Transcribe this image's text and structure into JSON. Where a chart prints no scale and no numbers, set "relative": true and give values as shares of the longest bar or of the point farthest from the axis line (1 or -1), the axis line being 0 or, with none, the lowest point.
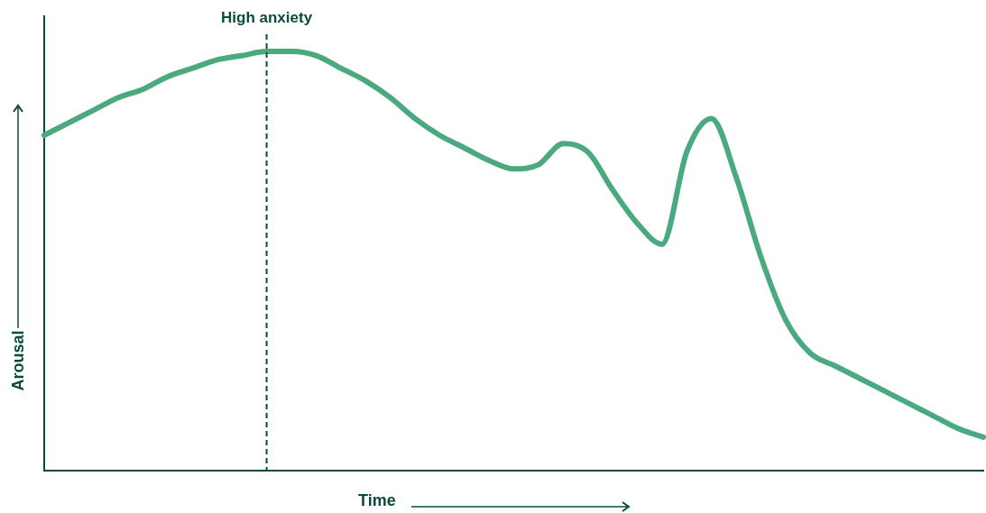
{
  "chart_data": {
    "type": "line",
    "relative": true,
    "xlabel": "Time",
    "ylabel": "Arousal",
    "categories": [
      null,
      null,
      null,
      null,
      null,
      null,
      null,
      null,
      null,
      null,
      null,
      null,
      null,
      null,
      null,
      null,
      null,
      null,
      null,
      null,
      null,
      null,
      null,
      null,
      null,
      null,
      null,
      null,
      null,
      null,
      null,
      null,
      null,
      null,
      null,
      null,
      null,
      null,
      null
    ],
    "series": [
      {
        "color": "#4aa97f",
        "values": [
          0.8,
          0.83,
          0.86,
          0.89,
          0.91,
          0.94,
          0.96,
          0.98,
          0.99,
          1,
          1,
          0.99,
          0.96,
          0.93,
          0.89,
          0.84,
          0.8,
          0.77,
          0.74,
          0.72,
          0.73,
          0.78,
          0.76,
          0.67,
          0.59,
          0.54,
          0.76,
          0.84,
          0.7,
          0.51,
          0.36,
          0.28,
          0.25,
          0.22,
          0.19,
          0.16,
          0.13,
          0.1,
          0.08
        ]
      }
    ],
    "annotations": [
      "High anxiety"
    ],
    "marker": "none",
    "grid": false,
    "legend": false
  }
}
